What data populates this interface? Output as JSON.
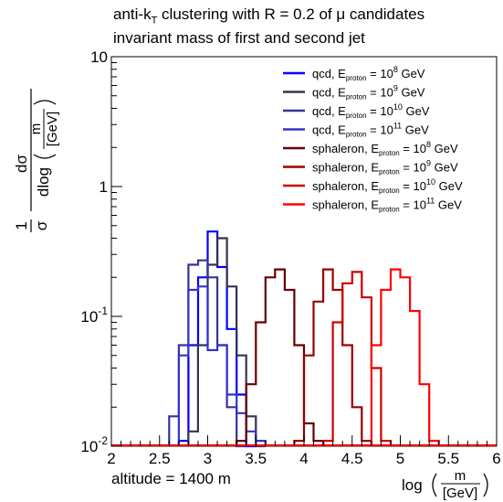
{
  "chart_data": {
    "type": "line",
    "title_line1_prefix": "anti-k",
    "title_line1_sub": "T",
    "title_line1_suffix": " clustering with R = 0.2 of μ candidates",
    "title_line2": "invariant mass of first and second jet",
    "annotation": "altitude = 1400 m",
    "xlabel": {
      "func": "log",
      "num": "m",
      "den": "[GeV]"
    },
    "ylabel": {
      "one": "1",
      "sigma": "σ",
      "dsigma": "dσ",
      "dlog": "dlog",
      "num": "m",
      "den": "[GeV]"
    },
    "xlim": [
      2,
      6
    ],
    "ylim": [
      0.01,
      10
    ],
    "yscale": "log",
    "xticks": [
      "2",
      "2.5",
      "3",
      "3.5",
      "4",
      "4.5",
      "5",
      "5.5",
      "6"
    ],
    "yticks": [
      {
        "base": "10",
        "exp": "-2",
        "value": 0.01
      },
      {
        "base": "10",
        "exp": "-1",
        "value": 0.1
      },
      {
        "base": "1",
        "exp": "",
        "value": 1
      },
      {
        "base": "10",
        "exp": "",
        "value": 10
      }
    ],
    "bin_width": 0.1,
    "legend_position": "top-right",
    "series": [
      {
        "name_prefix": "qcd, E",
        "name_sub": "proton",
        "name_mid": " = 10",
        "name_exp": "8",
        "name_suffix": " GeV",
        "color": "#0000ff",
        "x_start": 2.7,
        "values": [
          0.011,
          0.06,
          0.2,
          0.45,
          0.24,
          0.08,
          0.025,
          0.01
        ]
      },
      {
        "name_prefix": "qcd, E",
        "name_sub": "proton",
        "name_mid": " = 10",
        "name_exp": "9",
        "name_suffix": " GeV",
        "color": "#333355",
        "x_start": 2.8,
        "values": [
          0.013,
          0.06,
          0.25,
          0.4,
          0.17,
          0.05,
          0.017,
          0.01
        ]
      },
      {
        "name_prefix": "qcd, E",
        "name_sub": "proton",
        "name_mid": " = 10",
        "name_exp": "10",
        "name_suffix": " GeV",
        "color": "#333399",
        "x_start": 2.6,
        "values": [
          0.017,
          0.06,
          0.25,
          0.27,
          0.2,
          0.06,
          0.02,
          0.01
        ]
      },
      {
        "name_prefix": "qcd, E",
        "name_sub": "proton",
        "name_mid": " = 10",
        "name_exp": "11",
        "name_suffix": " GeV",
        "color": "#3333cc",
        "x_start": 2.7,
        "values": [
          0.05,
          0.16,
          0.17,
          0.055,
          0.06,
          0.025,
          0.018,
          0.013,
          0.011
        ]
      },
      {
        "name_prefix": "sphaleron, E",
        "name_sub": "proton",
        "name_mid": " = 10",
        "name_exp": "8",
        "name_suffix": " GeV",
        "color": "#660000",
        "x_start": 3.3,
        "values": [
          0.011,
          0.03,
          0.09,
          0.2,
          0.23,
          0.16,
          0.06,
          0.015,
          0.011
        ]
      },
      {
        "name_prefix": "sphaleron, E",
        "name_sub": "proton",
        "name_mid": " = 10",
        "name_exp": "9",
        "name_suffix": " GeV",
        "color": "#990000",
        "x_start": 3.9,
        "values": [
          0.011,
          0.05,
          0.13,
          0.23,
          0.16,
          0.06,
          0.02,
          0.011
        ]
      },
      {
        "name_prefix": "sphaleron, E",
        "name_sub": "proton",
        "name_mid": " = 10",
        "name_exp": "10",
        "name_suffix": " GeV",
        "color": "#cc0000",
        "x_start": 4.2,
        "values": [
          0.011,
          0.09,
          0.18,
          0.22,
          0.14,
          0.04,
          0.011
        ]
      },
      {
        "name_prefix": "sphaleron, E",
        "name_sub": "proton",
        "name_mid": " = 10",
        "name_exp": "11",
        "name_suffix": " GeV",
        "color": "#ff0000",
        "x_start": 4.7,
        "values": [
          0.06,
          0.16,
          0.23,
          0.2,
          0.11,
          0.03,
          0.011
        ]
      }
    ]
  }
}
